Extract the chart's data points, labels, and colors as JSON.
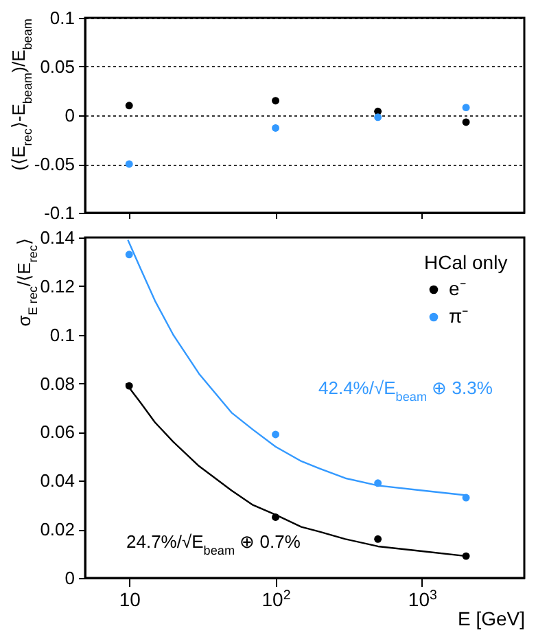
{
  "chart_data": [
    {
      "type": "scatter",
      "ylabel": "(⟨E$_{rec}$⟩-E$_{beam}$)/E$_{beam}$",
      "x": [
        10,
        100,
        500,
        2000
      ],
      "xlim": [
        5,
        5000
      ],
      "xticks": [
        10,
        100,
        1000
      ],
      "log": "x",
      "ylim": [
        -0.1,
        0.1
      ],
      "yticks": [
        -0.1,
        -0.05,
        0,
        0.05,
        0.1
      ],
      "grid": "y",
      "tick_labels": "y",
      "marker": "circle",
      "series": [
        {
          "color": "#000000",
          "values": [
            0.01,
            0.015,
            0.004,
            -0.007
          ]
        },
        {
          "color": "#3399ff",
          "values": [
            -0.05,
            -0.013,
            -0.002,
            0.008
          ]
        }
      ]
    },
    {
      "type": "scatter",
      "xlabel": "E [GeV]",
      "ylabel": "σ$_{E rec}$/⟨E$_{rec}$⟩",
      "x": [
        10,
        100,
        500,
        2000
      ],
      "xlim": [
        5,
        5000
      ],
      "xticks": [
        {
          "value": 10,
          "label": "10"
        },
        {
          "value": 100,
          "label": "10$^{2}$"
        },
        {
          "value": 1000,
          "label": "10$^{3}$"
        }
      ],
      "log": "x",
      "ylim": [
        0,
        0.14
      ],
      "yticks": [
        0,
        0.02,
        0.04,
        0.06,
        0.08,
        0.1,
        0.12,
        0.14
      ],
      "legend": "top right",
      "legend_title": "HCal only",
      "marker": "circle",
      "annotations": [
        "42.4%/√E$_{beam}$ ⊕ 3.3%",
        "24.7%/√E$_{beam}$ ⊕ 0.7%"
      ],
      "series": [
        {
          "name": "e⁻",
          "color": "#000000",
          "values": [
            0.079,
            0.025,
            0.016,
            0.009
          ]
        },
        {
          "name": "π⁻",
          "color": "#3399ff",
          "values": [
            0.133,
            0.059,
            0.039,
            0.033
          ]
        },
        {
          "type": "line",
          "marker": "none",
          "color": "#000000",
          "x": [
            9.5,
            12,
            15,
            20,
            30,
            50,
            70,
            100,
            150,
            200,
            300,
            500,
            1000,
            2000
          ],
          "values": [
            0.08,
            0.072,
            0.064,
            0.056,
            0.046,
            0.036,
            0.03,
            0.026,
            0.021,
            0.019,
            0.016,
            0.013,
            0.011,
            0.009
          ]
        },
        {
          "type": "line",
          "marker": "none",
          "color": "#3399ff",
          "x": [
            9.8,
            12,
            15,
            20,
            30,
            50,
            70,
            100,
            150,
            200,
            300,
            500,
            1000,
            2000
          ],
          "values": [
            0.139,
            0.127,
            0.114,
            0.1,
            0.084,
            0.068,
            0.061,
            0.054,
            0.048,
            0.045,
            0.041,
            0.038,
            0.036,
            0.034
          ]
        }
      ]
    }
  ]
}
